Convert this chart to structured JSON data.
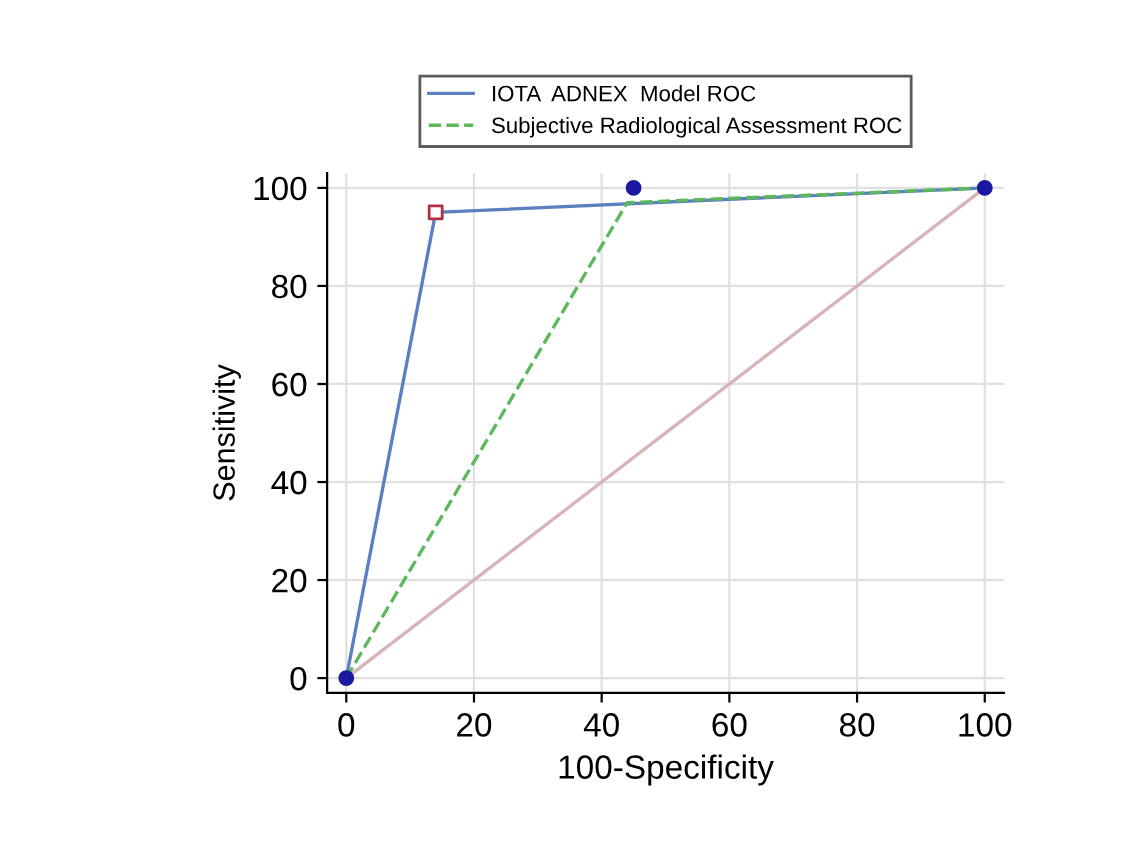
{
  "chart_data": {
    "type": "line",
    "xlabel": "100-Specificity",
    "ylabel": "Sensitivity",
    "xlim": [
      -3,
      103
    ],
    "ylim": [
      -3,
      103
    ],
    "xticks": [
      0,
      20,
      40,
      60,
      80,
      100
    ],
    "yticks": [
      0,
      20,
      40,
      60,
      80,
      100
    ],
    "grid": true,
    "legend": "top",
    "marker": "none",
    "line_style": "solid",
    "series": [
      {
        "name": "IOTA  ADNEX  Model ROC",
        "color": "#5b7fc0",
        "x": [
          0,
          14,
          100
        ],
        "values": [
          0,
          95,
          100
        ]
      },
      {
        "name": "Subjective Radiological Assessment ROC",
        "color": "#5cb85c",
        "line_style": "dashed",
        "x": [
          0,
          44,
          100
        ],
        "values": [
          0,
          97,
          100
        ]
      },
      {
        "color": "#d8b4b8",
        "x": [
          0,
          100
        ],
        "values": [
          0,
          100
        ]
      },
      {
        "type": "scatter",
        "color": "#1a1aa0",
        "marker": "circle",
        "x": [
          0,
          45,
          100
        ],
        "values": [
          0,
          100,
          100
        ]
      },
      {
        "type": "scatter",
        "color": "#b03040",
        "marker": "square",
        "x": [
          14
        ],
        "values": [
          95
        ]
      }
    ]
  }
}
